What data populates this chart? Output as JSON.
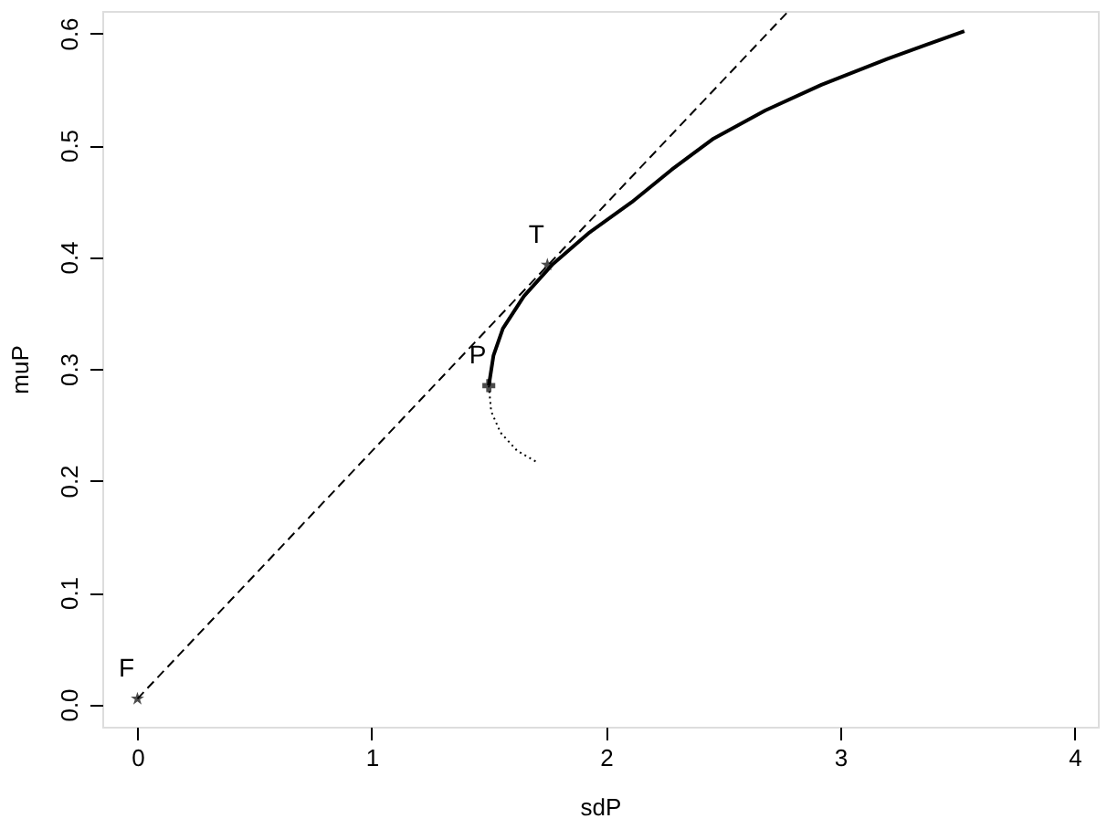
{
  "chart_data": {
    "type": "line",
    "xlabel": "sdP",
    "ylabel": "muP",
    "xlim": [
      -0.15,
      4.1
    ],
    "ylim": [
      -0.02,
      0.62
    ],
    "xticks": [
      0,
      1,
      2,
      3,
      4
    ],
    "yticks": [
      {
        "value": 0,
        "label": "0.0"
      },
      {
        "value": 0.1,
        "label": "0.1"
      },
      {
        "value": 0.2,
        "label": "0.2"
      },
      {
        "value": 0.3,
        "label": "0.3"
      },
      {
        "value": 0.4,
        "label": "0.4"
      },
      {
        "value": 0.5,
        "label": "0.5"
      },
      {
        "value": 0.6,
        "label": "0.6"
      }
    ],
    "grid": false,
    "series": [
      {
        "line_style": "solid",
        "color": "#000000",
        "x": [
          1.5,
          1.52,
          1.56,
          1.65,
          1.77,
          1.93,
          2.11,
          2.28,
          2.46,
          2.68,
          2.92,
          3.2,
          3.53
        ],
        "values": [
          0.285,
          0.312,
          0.336,
          0.365,
          0.393,
          0.422,
          0.449,
          0.478,
          0.506,
          0.531,
          0.554,
          0.577,
          0.602
        ]
      },
      {
        "line_style": "dotted",
        "color": "#000000",
        "x": [
          1.5,
          1.51,
          1.55,
          1.62,
          1.71
        ],
        "values": [
          0.285,
          0.262,
          0.243,
          0.227,
          0.216
        ]
      },
      {
        "line_style": "dashed",
        "color": "#000000",
        "x": [
          0,
          2.78
        ],
        "values": [
          0.005,
          0.62
        ]
      },
      {
        "type": "scatter",
        "marker": "star",
        "color": "#000000",
        "x": [
          0,
          1.75
        ],
        "values": [
          0.005,
          0.393
        ]
      },
      {
        "type": "scatter",
        "marker": "cross",
        "color": "#000000",
        "x": [
          1.5
        ],
        "values": [
          0.285
        ]
      }
    ],
    "annotations": [
      {
        "text": "F",
        "x": 0,
        "y": 0.005
      },
      {
        "text": "T",
        "x": 1.75,
        "y": 0.393
      },
      {
        "text": "P",
        "x": 1.5,
        "y": 0.285
      }
    ]
  }
}
